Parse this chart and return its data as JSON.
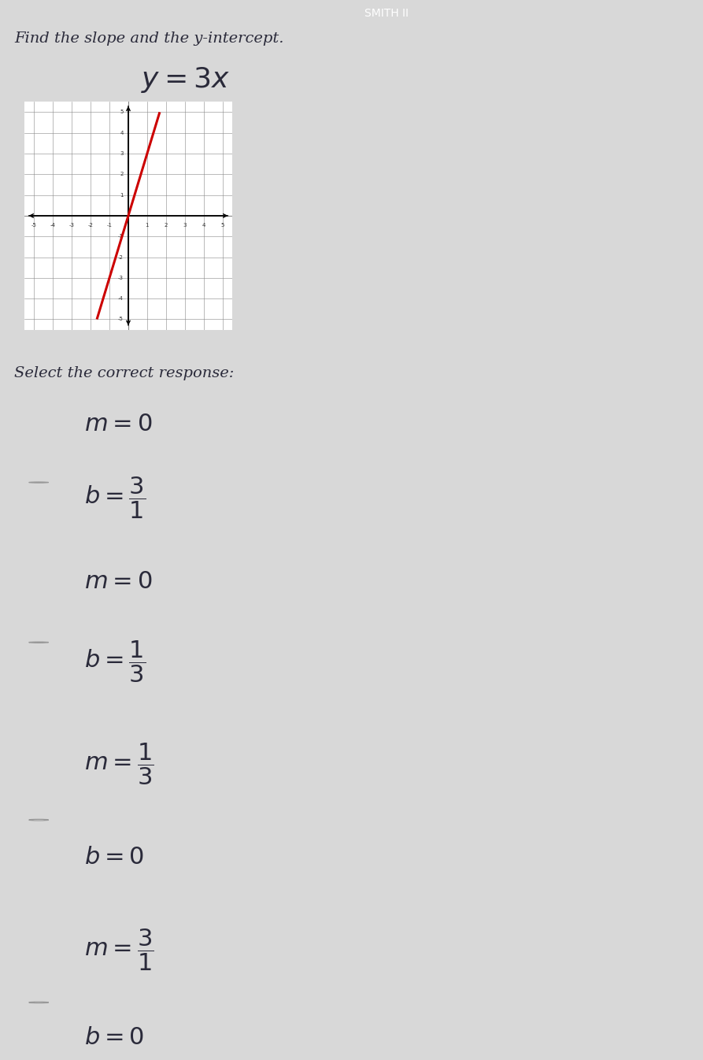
{
  "title_instruction": "Find the slope and the y-intercept.",
  "header_bg_color": "#8B1A2A",
  "header_text_color": "#ffffff",
  "body_bg_color": "#d8d8d8",
  "graph_xlim": [
    -5,
    5
  ],
  "graph_ylim": [
    -5,
    5
  ],
  "line_color": "#cc0000",
  "answer_question": "Select the correct response:",
  "options": [
    {
      "line1": "m = 0",
      "line2_prefix": "b = ",
      "frac_num": "3",
      "frac_den": "1",
      "bg_color": "#c5cad8"
    },
    {
      "line1": "m = 0",
      "line2_prefix": "b = ",
      "frac_num": "1",
      "frac_den": "3",
      "bg_color": "#cdd0db"
    },
    {
      "line1_prefix": "m = ",
      "frac_num": "1",
      "frac_den": "3",
      "line2": "b = 0",
      "bg_color": "#d0d3dc"
    },
    {
      "line1_prefix": "m = ",
      "frac_num": "3",
      "frac_den": "1",
      "line2": "b = 0",
      "bg_color": "#d0d3dc"
    }
  ],
  "text_color": "#2a2a3a",
  "font_size_equation": 26,
  "font_size_instruction": 14,
  "font_size_options": 22,
  "font_size_select": 14
}
